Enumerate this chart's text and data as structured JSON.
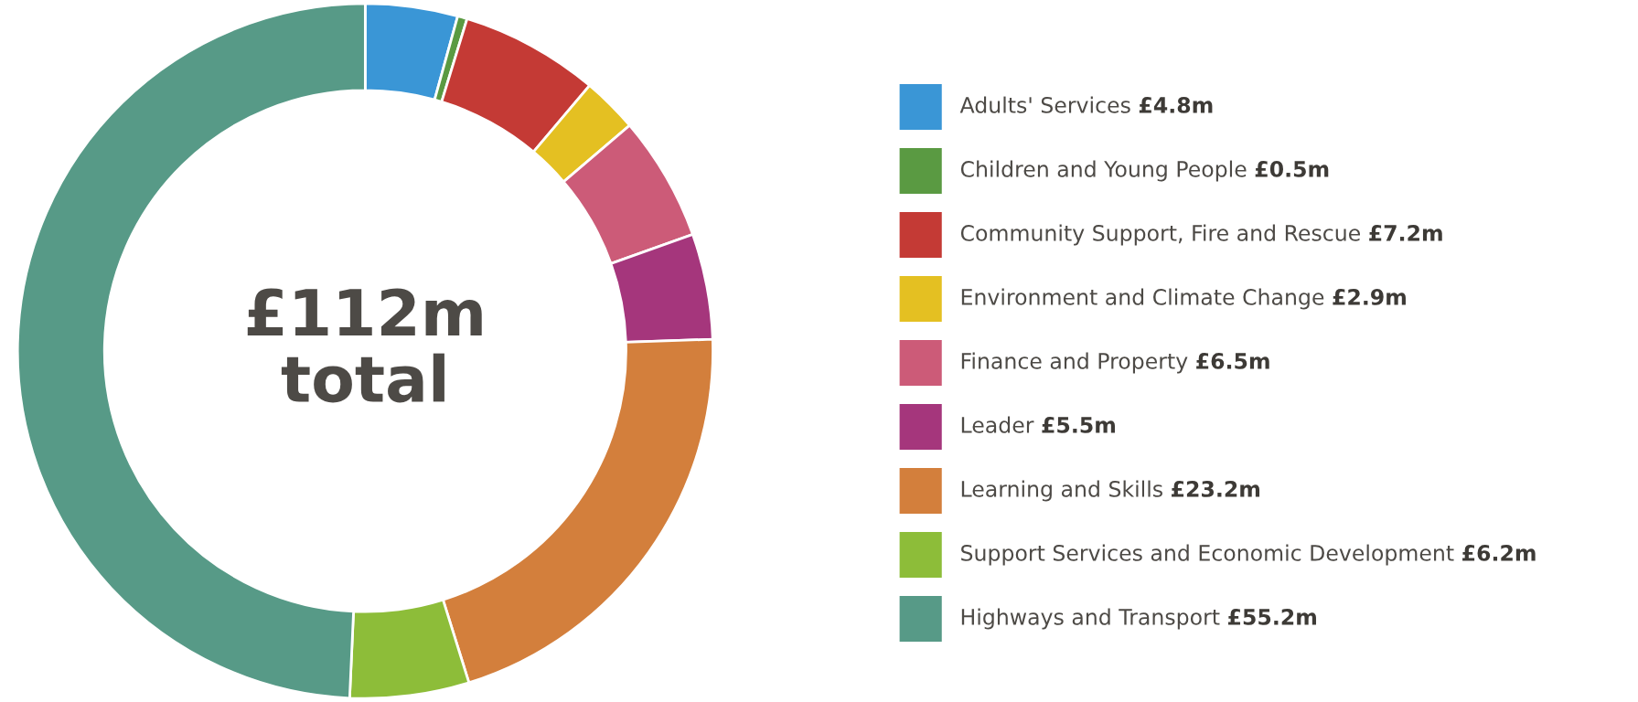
{
  "chart_data": {
    "type": "donut",
    "categories": [
      "Adults' Services",
      "Children and Young People",
      "Community Support, Fire and Rescue",
      "Environment and Climate Change",
      "Finance and Property",
      "Leader",
      "Learning and Skills",
      "Support Services and Economic Development",
      "Highways and Transport"
    ],
    "values": [
      4.8,
      0.5,
      7.2,
      2.9,
      6.5,
      5.5,
      23.2,
      6.2,
      55.2
    ],
    "value_labels": [
      "£4.8m",
      "£0.5m",
      "£7.2m",
      "£2.9m",
      "£6.5m",
      "£5.5m",
      "£23.2m",
      "£6.2m",
      "£55.2m"
    ],
    "colors": [
      "#3a96d6",
      "#5a9a42",
      "#c43a35",
      "#e4c022",
      "#cc5b78",
      "#a5367c",
      "#d37f3c",
      "#8dbd39",
      "#579a87"
    ],
    "annotations": [
      "£112m\ntotal"
    ],
    "legend": "right"
  }
}
